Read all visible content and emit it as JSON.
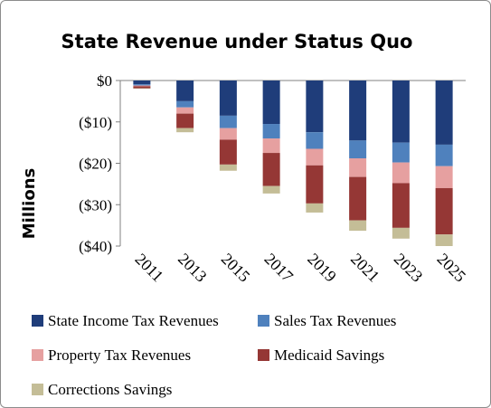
{
  "chart_data": {
    "type": "bar",
    "stacked": true,
    "title": "State Revenue under Status Quo",
    "xlabel": "",
    "ylabel": "Millions",
    "ylim": [
      -40,
      0
    ],
    "yticks": [
      0,
      -10,
      -20,
      -30,
      -40
    ],
    "ytick_labels": [
      "$0",
      "($10)",
      "($20)",
      "($30)",
      "($40)"
    ],
    "categories": [
      "2011",
      "2013",
      "2015",
      "2017",
      "2019",
      "2021",
      "2023",
      "2025"
    ],
    "legend_position": "bottom",
    "grid": false,
    "series": [
      {
        "name": "State Income Tax Revenues",
        "color": "#1f3d7a",
        "values": [
          -0.9,
          -5,
          -8.5,
          -10.5,
          -12.5,
          -14.5,
          -15,
          -15.5
        ]
      },
      {
        "name": "Sales Tax Revenues",
        "color": "#4f81bd",
        "values": [
          -0.3,
          -1.5,
          -3,
          -3.5,
          -4,
          -4.3,
          -4.8,
          -5.2
        ]
      },
      {
        "name": "Property Tax Revenues",
        "color": "#e6a0a0",
        "values": [
          -0.2,
          -1.5,
          -2.8,
          -3.5,
          -4,
          -4.5,
          -5,
          -5.3
        ]
      },
      {
        "name": "Medicaid Savings",
        "color": "#953735",
        "values": [
          -0.5,
          -3.5,
          -6,
          -8,
          -9.2,
          -10.5,
          -10.8,
          -11.2
        ]
      },
      {
        "name": "Corrections Savings",
        "color": "#c4bd97",
        "values": [
          -0.1,
          -1,
          -1.5,
          -1.8,
          -2.2,
          -2.5,
          -2.6,
          -2.8
        ]
      }
    ]
  }
}
